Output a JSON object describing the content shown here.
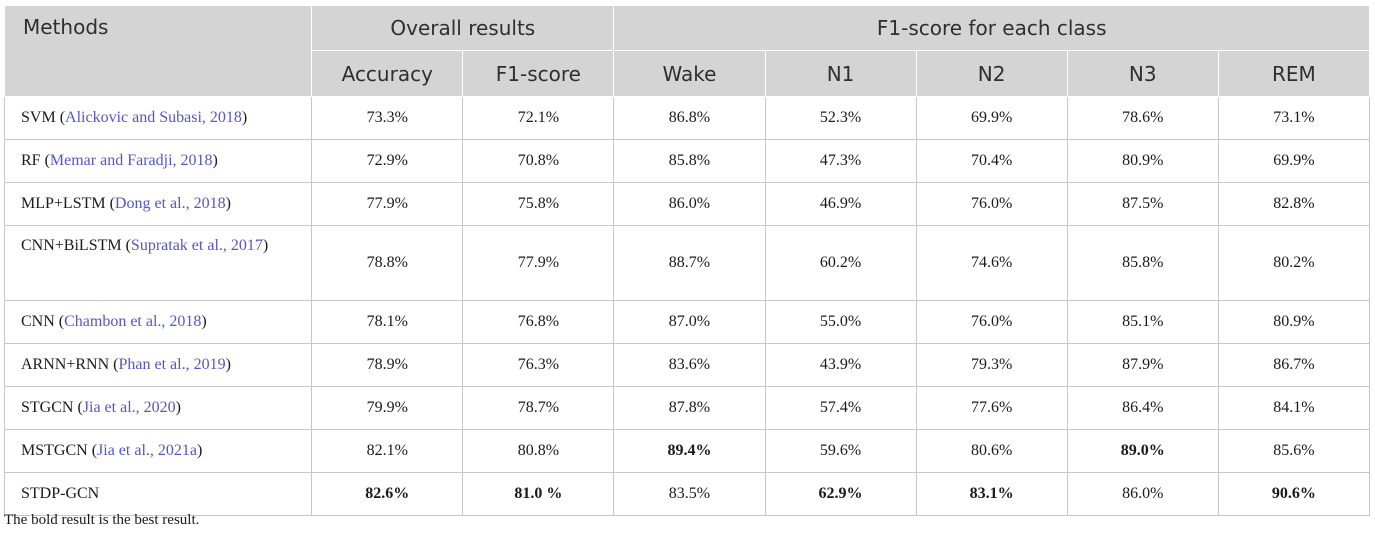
{
  "header": {
    "methods": "Methods",
    "overall": "Overall results",
    "perclass": "F1-score for each class",
    "cols": [
      "Accuracy",
      "F1-score",
      "Wake",
      "N1",
      "N2",
      "N3",
      "REM"
    ]
  },
  "rows": [
    {
      "method": "SVM",
      "cite": "Alickovic and Subasi, 2018",
      "v": [
        "73.3%",
        "72.1%",
        "86.8%",
        "52.3%",
        "69.9%",
        "78.6%",
        "73.1%"
      ]
    },
    {
      "method": "RF",
      "cite": "Memar and Faradji, 2018",
      "v": [
        "72.9%",
        "70.8%",
        "85.8%",
        "47.3%",
        "70.4%",
        "80.9%",
        "69.9%"
      ]
    },
    {
      "method": "MLP+LSTM",
      "cite": "Dong et al., 2018",
      "v": [
        "77.9%",
        "75.8%",
        "86.0%",
        "46.9%",
        "76.0%",
        "87.5%",
        "82.8%"
      ]
    },
    {
      "method": "CNN+BiLSTM",
      "cite": "Supratak et al., 2017",
      "v": [
        "78.8%",
        "77.9%",
        "88.7%",
        "60.2%",
        "74.6%",
        "85.8%",
        "80.2%"
      ]
    },
    {
      "method": "CNN",
      "cite": "Chambon et al., 2018",
      "v": [
        "78.1%",
        "76.8%",
        "87.0%",
        "55.0%",
        "76.0%",
        "85.1%",
        "80.9%"
      ]
    },
    {
      "method": "ARNN+RNN",
      "cite": "Phan et al., 2019",
      "v": [
        "78.9%",
        "76.3%",
        "83.6%",
        "43.9%",
        "79.3%",
        "87.9%",
        "86.7%"
      ]
    },
    {
      "method": "STGCN",
      "cite": "Jia et al., 2020",
      "v": [
        "79.9%",
        "78.7%",
        "87.8%",
        "57.4%",
        "77.6%",
        "86.4%",
        "84.1%"
      ]
    },
    {
      "method": "MSTGCN",
      "cite": "Jia et al., 2021a",
      "v": [
        "82.1%",
        "80.8%",
        "89.4%",
        "59.6%",
        "80.6%",
        "89.0%",
        "85.6%"
      ]
    },
    {
      "method": "STDP-GCN",
      "cite": "",
      "v": [
        "82.6%",
        "81.0 %",
        "83.5%",
        "62.9%",
        "83.1%",
        "86.0%",
        "90.6%"
      ]
    }
  ],
  "footnote": "The bold result is the best result."
}
